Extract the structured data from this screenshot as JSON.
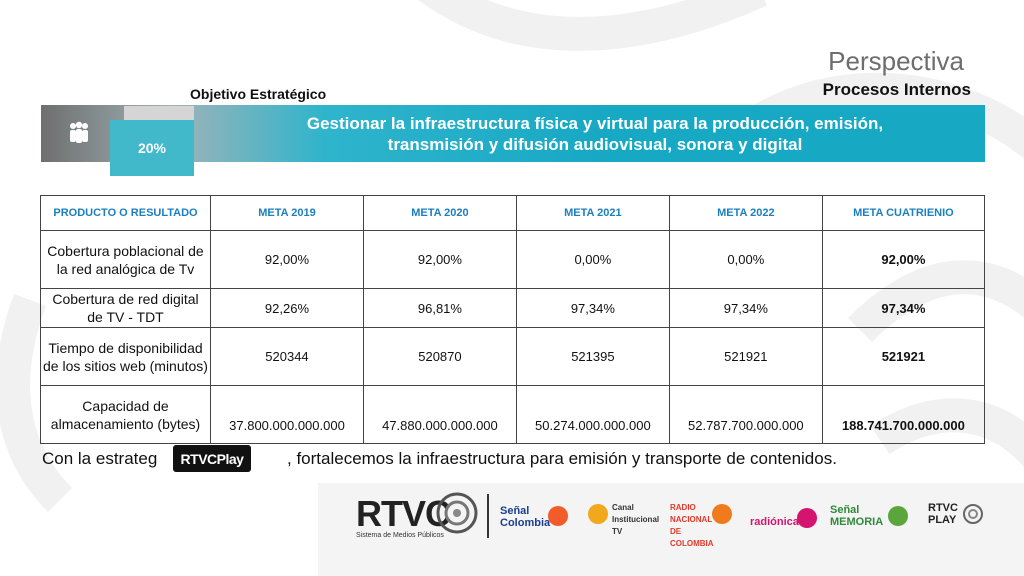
{
  "header": {
    "perspective_title": "Perspectiva",
    "perspective_subtitle": "Procesos Internos",
    "objective_label": "Objetivo Estratégico"
  },
  "banner": {
    "icon": "people-group-icon",
    "percentage": "20%",
    "text": "Gestionar la infraestructura física y virtual para la producción, emisión, transmisión y difusión audiovisual, sonora y digital"
  },
  "table": {
    "headers": [
      "PRODUCTO O RESULTADO",
      "META 2019",
      "META 2020",
      "META 2021",
      "META 2022",
      "META CUATRIENIO"
    ],
    "rows": [
      {
        "name": "Cobertura poblacional de la red analógica de Tv",
        "values": [
          "92,00%",
          "92,00%",
          "0,00%",
          "0,00%",
          "92,00%"
        ]
      },
      {
        "name": "Cobertura de red digital de TV - TDT",
        "values": [
          "92,26%",
          "96,81%",
          "97,34%",
          "97,34%",
          "97,34%"
        ]
      },
      {
        "name": "Tiempo de disponibilidad de los sitios web (minutos)",
        "values": [
          "520344",
          "520870",
          "521395",
          "521921",
          "521921"
        ]
      },
      {
        "name": "Capacidad de almacenamiento (bytes)",
        "values": [
          "37.800.000.000.000",
          "47.880.000.000.000",
          "50.274.000.000.000",
          "52.787.700.000.000",
          "188.741.700.000.000"
        ]
      }
    ]
  },
  "strategy": {
    "prefix": "Con la estrateg",
    "logo_text": "RTVCPlay",
    "suffix": ", fortalecemos la infraestructura para emisión y transporte de contenidos."
  },
  "footer": {
    "rtvc": "RTVC",
    "rtvc_tagline": "Sistema de Medios Públicos",
    "channels": [
      {
        "name": "Señal Colombia",
        "color": "#1a3d8f"
      },
      {
        "name": "Canal Institucional TV",
        "color": "#f2a81d"
      },
      {
        "name": "RADIO NACIONAL DE COLOMBIA",
        "color": "#e23a2a"
      },
      {
        "name": "radiónica",
        "color": "#d4146e"
      },
      {
        "name": "Señal MEMORIA",
        "color": "#2f8a3a"
      },
      {
        "name": "RTVC PLAY",
        "color": "#222222"
      }
    ]
  }
}
